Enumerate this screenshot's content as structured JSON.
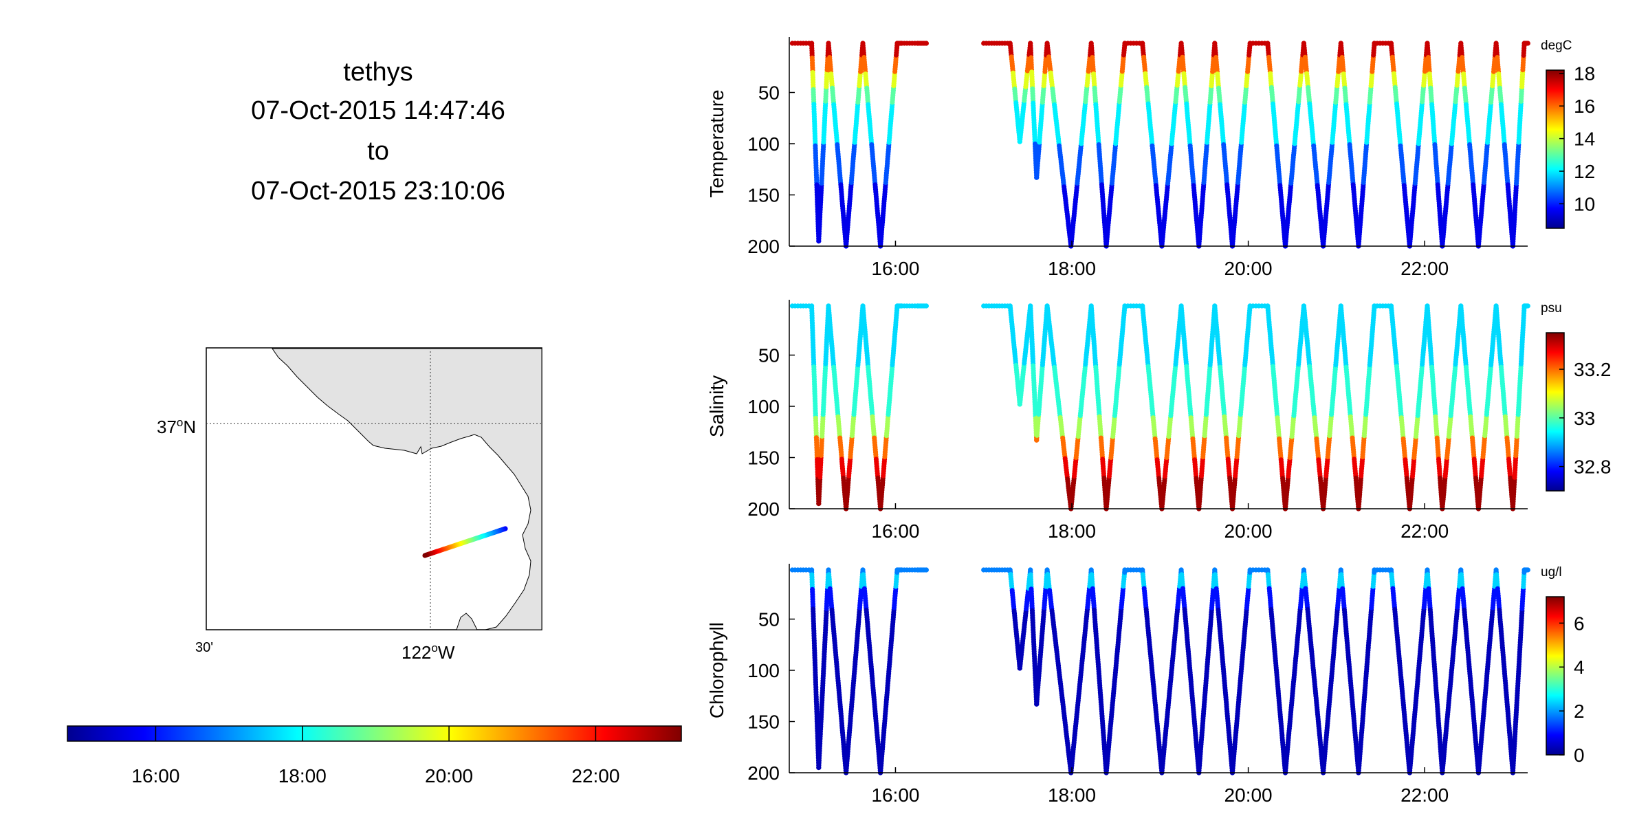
{
  "header": {
    "vehicle": "tethys",
    "start_time": "07-Oct-2015 14:47:46",
    "to_word": "to",
    "end_time": "07-Oct-2015 23:10:06"
  },
  "map": {
    "lat_label": "37",
    "lat_suffix": "N",
    "lon_label_left": "30'",
    "lon_label_main": "122",
    "lon_suffix": "W",
    "degree_symbol": "o",
    "land_color": "#e3e3e3"
  },
  "time_colorbar": {
    "ticks": [
      "16:00",
      "18:00",
      "20:00",
      "22:00"
    ],
    "start_hour": 14.796,
    "end_hour": 23.168
  },
  "chart_data": [
    {
      "type": "scatter",
      "ylabel": "Temperature",
      "unit": "degC",
      "x_ticks": [
        "16:00",
        "18:00",
        "20:00",
        "22:00"
      ],
      "x_tick_hours": [
        16,
        18,
        20,
        22
      ],
      "y_ticks": [
        50,
        100,
        150,
        200
      ],
      "ylim": [
        200,
        0
      ],
      "clim": [
        8.5,
        18.2
      ],
      "cbar_ticks": [
        10,
        12,
        14,
        16,
        18
      ],
      "variable": "temperature"
    },
    {
      "type": "scatter",
      "ylabel": "Salinity",
      "unit": "psu",
      "x_ticks": [
        "16:00",
        "18:00",
        "20:00",
        "22:00"
      ],
      "x_tick_hours": [
        16,
        18,
        20,
        22
      ],
      "y_ticks": [
        50,
        100,
        150,
        200
      ],
      "ylim": [
        200,
        0
      ],
      "clim": [
        32.7,
        33.35
      ],
      "cbar_ticks": [
        32.8,
        33,
        33.2
      ],
      "variable": "salinity"
    },
    {
      "type": "scatter",
      "ylabel": "Chlorophyll",
      "unit": "ug/l",
      "x_ticks": [
        "16:00",
        "18:00",
        "20:00",
        "22:00"
      ],
      "x_tick_hours": [
        16,
        18,
        20,
        22
      ],
      "y_ticks": [
        50,
        100,
        150,
        200
      ],
      "ylim": [
        200,
        0
      ],
      "clim": [
        0,
        7.2
      ],
      "cbar_ticks": [
        0,
        2,
        4,
        6
      ],
      "variable": "chlorophyll"
    }
  ],
  "profile_track": {
    "x_range_hours": [
      14.796,
      23.168
    ],
    "vertices": [
      [
        14.83,
        2
      ],
      [
        15.05,
        2
      ],
      [
        15.13,
        195
      ],
      [
        15.24,
        2
      ],
      [
        15.44,
        200
      ],
      [
        15.63,
        2
      ],
      [
        15.83,
        200
      ],
      [
        16.02,
        2
      ],
      [
        16.07,
        2
      ],
      [
        16.25,
        2
      ],
      [
        16.35,
        2
      ],
      null,
      [
        17.0,
        2
      ],
      [
        17.3,
        2
      ],
      [
        17.41,
        98
      ],
      [
        17.53,
        2
      ],
      [
        17.6,
        133
      ],
      [
        17.72,
        2
      ],
      [
        17.99,
        200
      ],
      [
        18.22,
        2
      ],
      [
        18.39,
        200
      ],
      [
        18.6,
        2
      ],
      [
        18.8,
        2
      ],
      [
        19.02,
        200
      ],
      [
        19.24,
        2
      ],
      [
        19.44,
        200
      ],
      [
        19.62,
        2
      ],
      [
        19.82,
        200
      ],
      [
        20.02,
        2
      ],
      [
        20.22,
        2
      ],
      [
        20.42,
        200
      ],
      [
        20.63,
        2
      ],
      [
        20.85,
        200
      ],
      [
        21.05,
        2
      ],
      [
        21.25,
        200
      ],
      [
        21.43,
        2
      ],
      [
        21.62,
        2
      ],
      [
        21.83,
        200
      ],
      [
        22.03,
        2
      ],
      [
        22.2,
        200
      ],
      [
        22.41,
        2
      ],
      [
        22.61,
        200
      ],
      [
        22.81,
        2
      ],
      [
        23.0,
        200
      ],
      [
        23.13,
        2
      ],
      [
        23.17,
        2
      ]
    ]
  }
}
